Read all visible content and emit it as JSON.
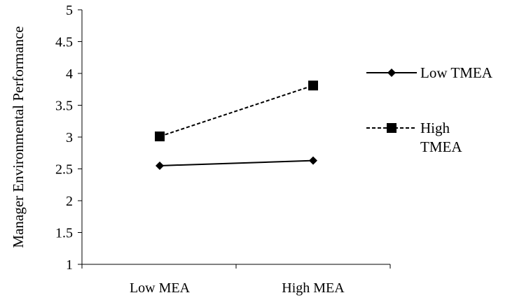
{
  "chart_data": {
    "type": "line",
    "title": "",
    "xlabel": "",
    "ylabel": "Manager Environmental Performance",
    "categories": [
      "Low MEA",
      "High MEA"
    ],
    "ylim": [
      1,
      5
    ],
    "yticks": [
      "1",
      "1.5",
      "2",
      "2.5",
      "3",
      "3.5",
      "4",
      "4.5",
      "5"
    ],
    "grid": false,
    "legend_position": "right",
    "series": [
      {
        "name": "Low TMEA",
        "values": [
          2.55,
          2.63
        ],
        "line_style": "solid",
        "marker": "diamond",
        "color": "#000000"
      },
      {
        "name": "High TMEA",
        "values": [
          3.01,
          3.81
        ],
        "line_style": "dashed",
        "marker": "square",
        "color": "#000000"
      }
    ]
  }
}
